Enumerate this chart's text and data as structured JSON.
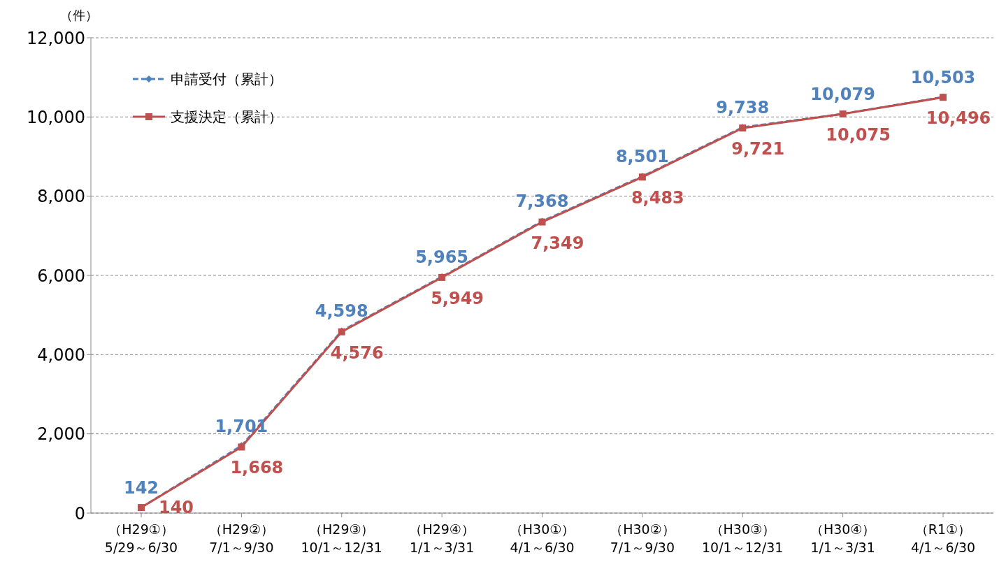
{
  "chart_data": {
    "type": "line",
    "ylabel": "（件）",
    "categories": [
      "（H29①）\n5/29～6/30",
      "（H29②）\n7/1～9/30",
      "（H29③）\n10/1～12/31",
      "（H29④）\n1/1～3/31",
      "（H30①）\n4/1～6/30",
      "（H30②）\n7/1～9/30",
      "（H30③）\n10/1～12/31",
      "（H30④）\n1/1～3/31",
      "（R1①）\n4/1～6/30"
    ],
    "series": [
      {
        "name": "申請受付（累計）",
        "color": "#4f81bd",
        "marker": "diamond",
        "line_style": "dashed",
        "values": [
          142,
          1701,
          4598,
          5965,
          7368,
          8501,
          9738,
          10079,
          10503
        ],
        "value_labels": [
          "142",
          "1,701",
          "4,598",
          "5,965",
          "7,368",
          "8,501",
          "9,738",
          "10,079",
          "10,503"
        ]
      },
      {
        "name": "支援決定（累計）",
        "color": "#c0504d",
        "marker": "square",
        "line_style": "solid",
        "values": [
          140,
          1668,
          4576,
          5949,
          7349,
          8483,
          9721,
          10075,
          10496
        ],
        "value_labels": [
          "140",
          "1,668",
          "4,576",
          "5,949",
          "7,349",
          "8,483",
          "9,721",
          "10,075",
          "10,496"
        ]
      }
    ],
    "ylim": [
      0,
      12000
    ],
    "yticks": [
      0,
      {
        "value": 2000,
        "label": "2,000"
      },
      {
        "value": 4000,
        "label": "4,000"
      },
      {
        "value": 6000,
        "label": "6,000"
      },
      {
        "value": 8000,
        "label": "8,000"
      },
      {
        "value": 10000,
        "label": "10,000"
      },
      {
        "value": 12000,
        "label": "12,000"
      }
    ],
    "grid": "y",
    "legend": "top left"
  }
}
